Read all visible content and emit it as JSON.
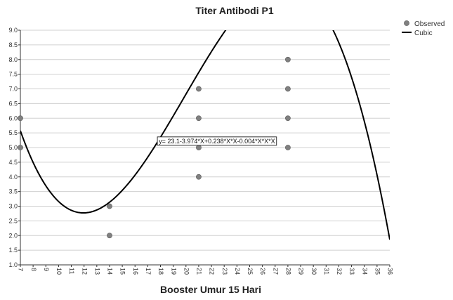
{
  "chart_data": {
    "type": "scatter",
    "title": "Titer Antibodi P1",
    "xlabel": "Booster Umur 15 Hari",
    "ylabel": "",
    "xlim": [
      7,
      36
    ],
    "ylim": [
      1.0,
      9.0
    ],
    "x_ticks": [
      7,
      8,
      9,
      10,
      11,
      12,
      13,
      14,
      15,
      16,
      17,
      18,
      19,
      20,
      21,
      22,
      23,
      24,
      25,
      26,
      27,
      28,
      29,
      30,
      31,
      32,
      33,
      34,
      35,
      36
    ],
    "y_ticks": [
      1.0,
      1.5,
      2.0,
      2.5,
      3.0,
      3.5,
      4.0,
      4.5,
      5.0,
      5.5,
      6.0,
      6.5,
      7.0,
      7.5,
      8.0,
      8.5,
      9.0
    ],
    "grid": "horizontal",
    "legend_position": "top-right",
    "series": [
      {
        "name": "Observed",
        "kind": "points",
        "color": "#808080",
        "points": [
          [
            7,
            6
          ],
          [
            7,
            5
          ],
          [
            14,
            3
          ],
          [
            14,
            2
          ],
          [
            21,
            7
          ],
          [
            21,
            6
          ],
          [
            21,
            5
          ],
          [
            21,
            4
          ],
          [
            28,
            8
          ],
          [
            28,
            7
          ],
          [
            28,
            6
          ],
          [
            28,
            5
          ]
        ]
      },
      {
        "name": "Cubic",
        "kind": "fit-line",
        "color": "#000000",
        "coefficients": [
          23.1,
          -3.974,
          0.238,
          -0.004
        ]
      }
    ],
    "annotation": {
      "text": "y= 23.1-3.974*X+0.238*X*X-0.004*X*X*X",
      "x": 17.7,
      "y": 5.1
    }
  }
}
